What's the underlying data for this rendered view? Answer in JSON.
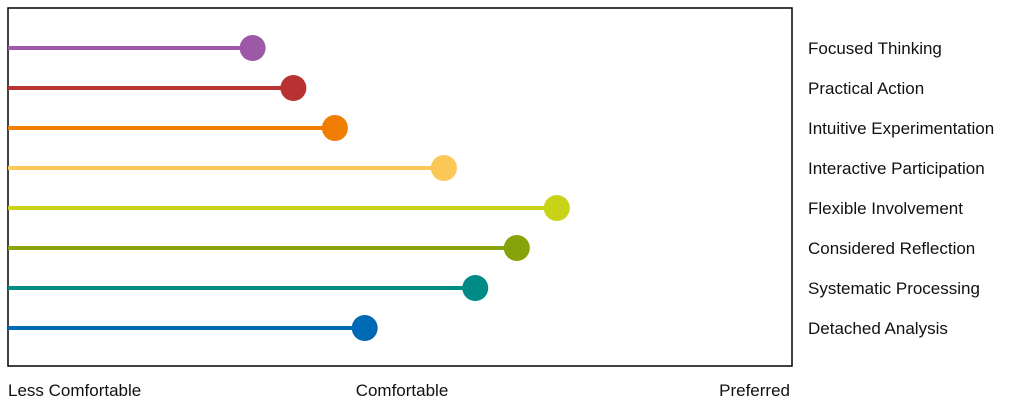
{
  "chart_data": {
    "type": "lollipop",
    "x_scale": {
      "min_label": "Less Comfortable",
      "mid_label": "Comfortable",
      "max_label": "Preferred",
      "range": [
        0,
        100
      ]
    },
    "grid": false,
    "legend": "right (labels aligned to rows)",
    "series": [
      {
        "name": "Focused Thinking",
        "value": 31.2,
        "color": "#9b59a6"
      },
      {
        "name": "Practical Action",
        "value": 36.4,
        "color": "#b83232"
      },
      {
        "name": "Intuitive Experimentation",
        "value": 41.7,
        "color": "#ef7d00"
      },
      {
        "name": "Interactive Participation",
        "value": 55.6,
        "color": "#fbc757"
      },
      {
        "name": "Flexible Involvement",
        "value": 70.0,
        "color": "#c8d317"
      },
      {
        "name": "Considered Reflection",
        "value": 64.9,
        "color": "#87a30a"
      },
      {
        "name": "Systematic Processing",
        "value": 59.6,
        "color": "#008b84"
      },
      {
        "name": "Detached Analysis",
        "value": 45.5,
        "color": "#0069b4"
      }
    ]
  }
}
